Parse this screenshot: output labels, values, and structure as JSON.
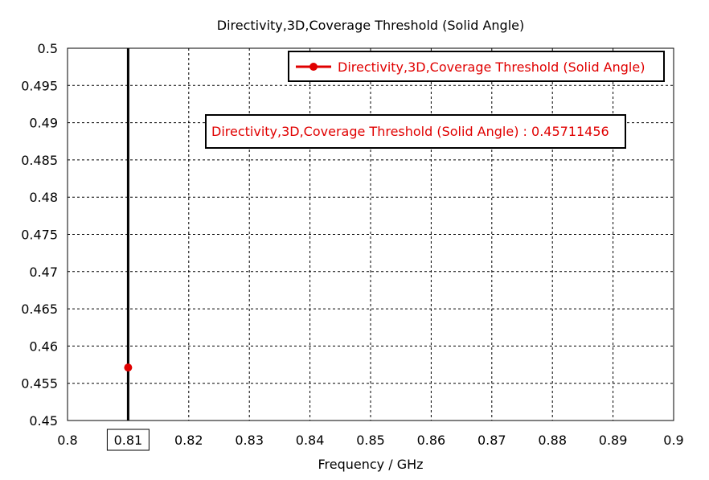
{
  "chart_data": {
    "type": "scatter",
    "title": "Directivity,3D,Coverage Threshold (Solid Angle)",
    "xlabel": "Frequency / GHz",
    "ylabel": "",
    "xlim": [
      0.8,
      0.9
    ],
    "ylim": [
      0.45,
      0.5
    ],
    "xticks": [
      "0.8",
      "0.81",
      "0.82",
      "0.83",
      "0.84",
      "0.85",
      "0.86",
      "0.87",
      "0.88",
      "0.89",
      "0.9"
    ],
    "yticks": [
      "0.5",
      "0.495",
      "0.49",
      "0.485",
      "0.48",
      "0.475",
      "0.47",
      "0.465",
      "0.46",
      "0.455",
      "0.45"
    ],
    "grid": true,
    "legend_position": "top-right",
    "series": [
      {
        "name": "Directivity,3D,Coverage Threshold (Solid Angle)",
        "x": [
          0.81
        ],
        "y": [
          0.45711456
        ],
        "color": "#e00000"
      }
    ],
    "marker_line": {
      "x": 0.81,
      "x_label": "0.81",
      "color": "#000000"
    },
    "annotation": {
      "text": "Directivity,3D,Coverage Threshold (Solid Angle) : 0.45711456",
      "color": "#e00000"
    }
  }
}
